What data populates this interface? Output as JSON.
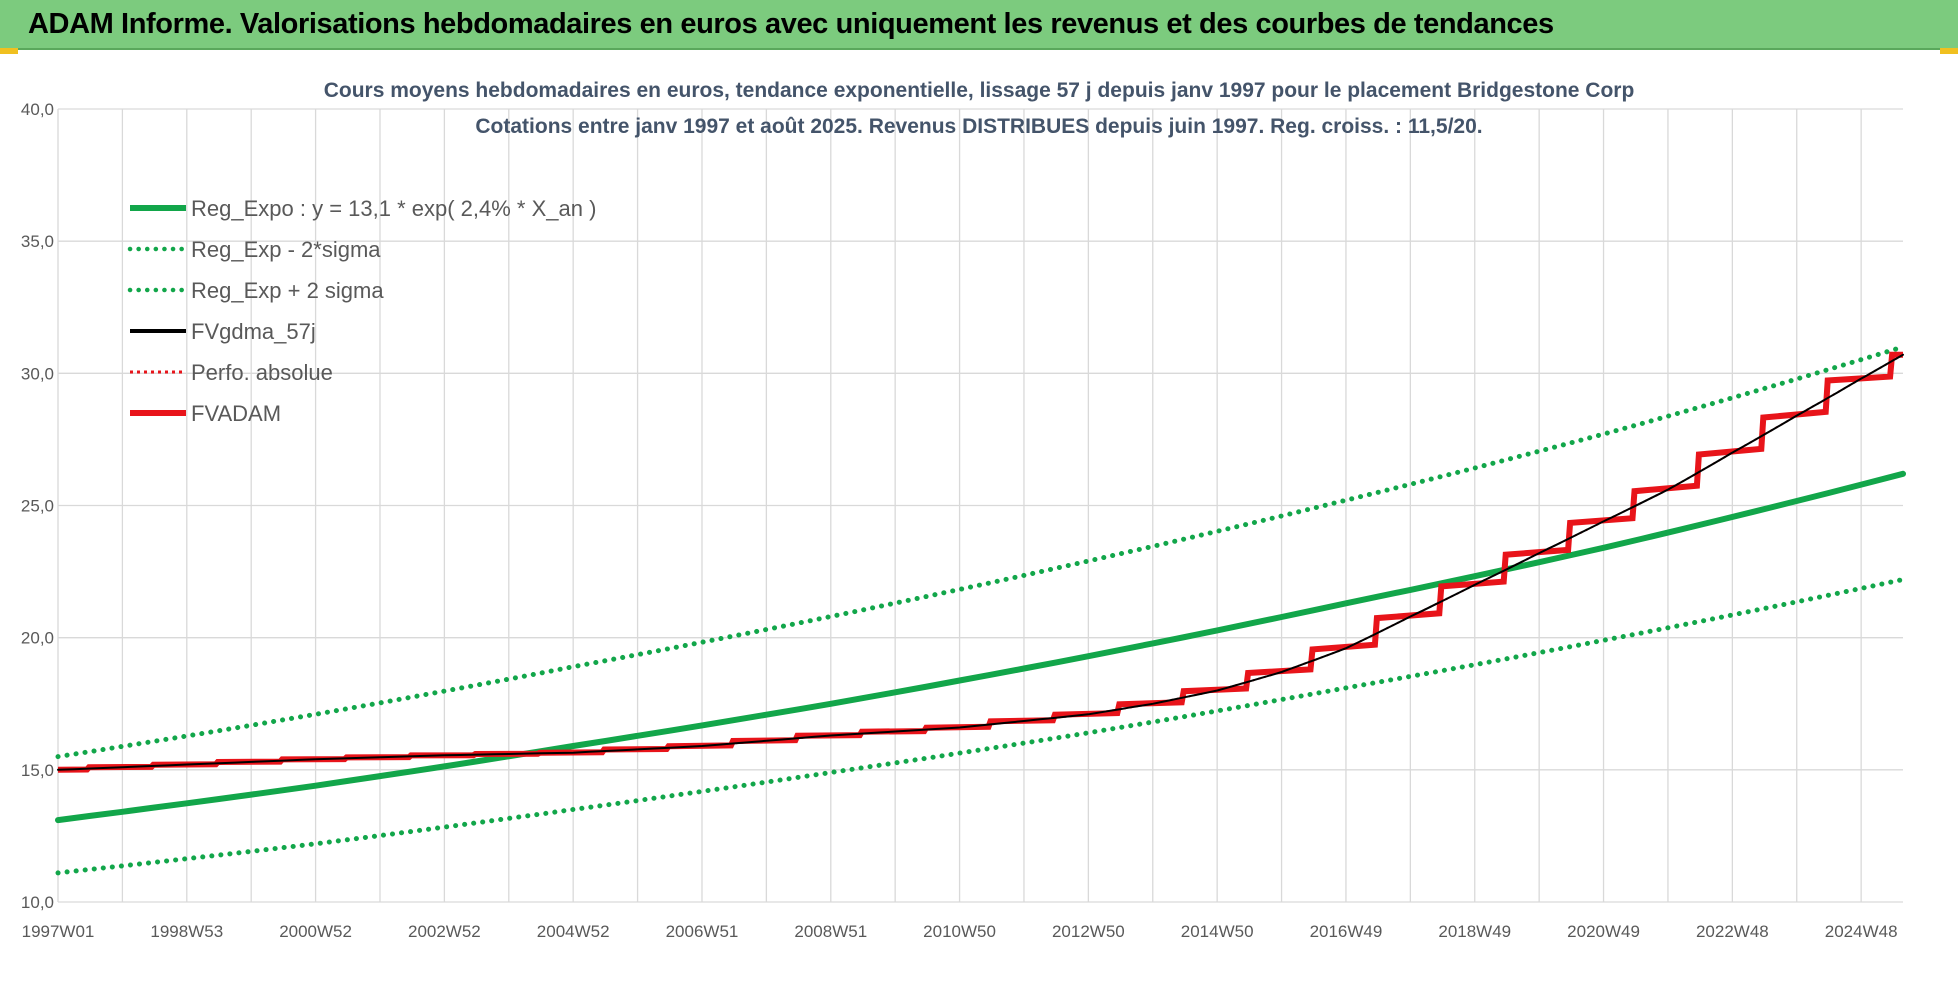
{
  "banner": {
    "title": "ADAM Informe. Valorisations hebdomadaires en euros avec uniquement les revenus et des courbes de tendances"
  },
  "colors": {
    "banner_bg": "#7ccb7e",
    "reg_green": "#12a64a",
    "fv_red": "#e8141a",
    "fv_black": "#000000",
    "title_text": "#44546a",
    "axis_text": "#595959",
    "grid": "#d9d9d9"
  },
  "chart_data": {
    "type": "line",
    "title_line1": "Cours moyens hebdomadaires en euros, tendance exponentielle, lissage 57 j depuis janv 1997 pour le placement Bridgestone Corp",
    "title_line2": "Cotations entre janv 1997 et août 2025. Revenus DISTRIBUES depuis juin 1997. Reg. croiss. : 11,5/20.",
    "xlabel": "",
    "ylabel": "",
    "ylim": [
      10,
      40
    ],
    "y_ticks": [
      "10,0",
      "15,0",
      "20,0",
      "25,0",
      "30,0",
      "35,0",
      "40,0"
    ],
    "x_range": [
      1997.0,
      2025.65
    ],
    "x_ticks": [
      {
        "label": "1997W01",
        "year": 1997.0
      },
      {
        "label": "1998W53",
        "year": 1999.0
      },
      {
        "label": "2000W52",
        "year": 2001.0
      },
      {
        "label": "2002W52",
        "year": 2003.0
      },
      {
        "label": "2004W52",
        "year": 2005.0
      },
      {
        "label": "2006W51",
        "year": 2007.0
      },
      {
        "label": "2008W51",
        "year": 2009.0
      },
      {
        "label": "2010W50",
        "year": 2011.0
      },
      {
        "label": "2012W50",
        "year": 2013.0
      },
      {
        "label": "2014W50",
        "year": 2015.0
      },
      {
        "label": "2016W49",
        "year": 2017.0
      },
      {
        "label": "2018W49",
        "year": 2019.0
      },
      {
        "label": "2020W49",
        "year": 2021.0
      },
      {
        "label": "2022W48",
        "year": 2023.0
      },
      {
        "label": "2024W48",
        "year": 2025.0
      }
    ],
    "grid": true,
    "legend_position": "top-left",
    "series": [
      {
        "name": "Reg_Expo : y = 13,1 * exp( 2,4% *  X_an )",
        "style": "solid-thick",
        "color": "#12a64a",
        "x": [
          1997.0,
          2001.0,
          2005.0,
          2009.0,
          2013.0,
          2017.0,
          2021.0,
          2025.65
        ],
        "y": [
          13.1,
          14.4,
          15.9,
          17.5,
          19.3,
          21.3,
          23.4,
          26.2
        ]
      },
      {
        "name": "Reg_Exp - 2*sigma",
        "style": "dotted",
        "color": "#12a64a",
        "x": [
          1997.0,
          2001.0,
          2005.0,
          2009.0,
          2013.0,
          2017.0,
          2021.0,
          2025.65
        ],
        "y": [
          11.1,
          12.2,
          13.5,
          14.9,
          16.4,
          18.1,
          19.9,
          22.2
        ]
      },
      {
        "name": "Reg_Exp + 2 sigma",
        "style": "dotted",
        "color": "#12a64a",
        "x": [
          1997.0,
          2001.0,
          2005.0,
          2009.0,
          2013.0,
          2017.0,
          2021.0,
          2025.65
        ],
        "y": [
          15.5,
          17.1,
          18.9,
          20.8,
          22.9,
          25.2,
          27.7,
          31.0
        ]
      },
      {
        "name": "FVgdma_57j",
        "style": "solid-thin",
        "color": "#000000",
        "x": [
          1997.0,
          1999.0,
          2001.0,
          2003.0,
          2005.0,
          2007.0,
          2009.0,
          2011.0,
          2013.0,
          2014.0,
          2015.0,
          2016.0,
          2017.0,
          2018.0,
          2019.0,
          2020.0,
          2021.0,
          2022.0,
          2023.0,
          2024.0,
          2025.0,
          2025.65
        ],
        "y": [
          15.0,
          15.2,
          15.4,
          15.55,
          15.65,
          15.9,
          16.3,
          16.6,
          17.1,
          17.5,
          18.0,
          18.7,
          19.6,
          20.8,
          22.0,
          23.2,
          24.4,
          25.6,
          27.0,
          28.4,
          29.8,
          30.7
        ]
      },
      {
        "name": "Perfo. absolue",
        "style": "dotted-thin",
        "color": "#e8141a",
        "x": [
          1997.0,
          1999.0,
          2001.0,
          2003.0,
          2005.0,
          2007.0,
          2009.0,
          2011.0,
          2013.0,
          2014.0,
          2015.0,
          2016.0,
          2017.0,
          2018.0,
          2019.0,
          2020.0,
          2021.0,
          2022.0,
          2023.0,
          2024.0,
          2025.0,
          2025.65
        ],
        "y": [
          15.0,
          15.2,
          15.4,
          15.55,
          15.65,
          15.9,
          16.3,
          16.6,
          17.1,
          17.5,
          18.0,
          18.7,
          19.6,
          20.8,
          22.0,
          23.2,
          24.4,
          25.6,
          27.0,
          28.4,
          29.8,
          30.7
        ]
      },
      {
        "name": "FVADAM",
        "style": "steps-thick",
        "color": "#e8141a",
        "x": [
          1997.0,
          1999.0,
          2001.0,
          2003.0,
          2005.0,
          2007.0,
          2009.0,
          2011.0,
          2013.0,
          2014.0,
          2015.0,
          2016.0,
          2017.0,
          2018.0,
          2019.0,
          2020.0,
          2021.0,
          2022.0,
          2023.0,
          2024.0,
          2025.0,
          2025.65
        ],
        "y": [
          15.0,
          15.2,
          15.4,
          15.55,
          15.65,
          15.9,
          16.3,
          16.6,
          17.1,
          17.5,
          18.0,
          18.7,
          19.6,
          20.8,
          22.0,
          23.2,
          24.4,
          25.6,
          27.0,
          28.4,
          29.8,
          30.7
        ]
      }
    ]
  }
}
